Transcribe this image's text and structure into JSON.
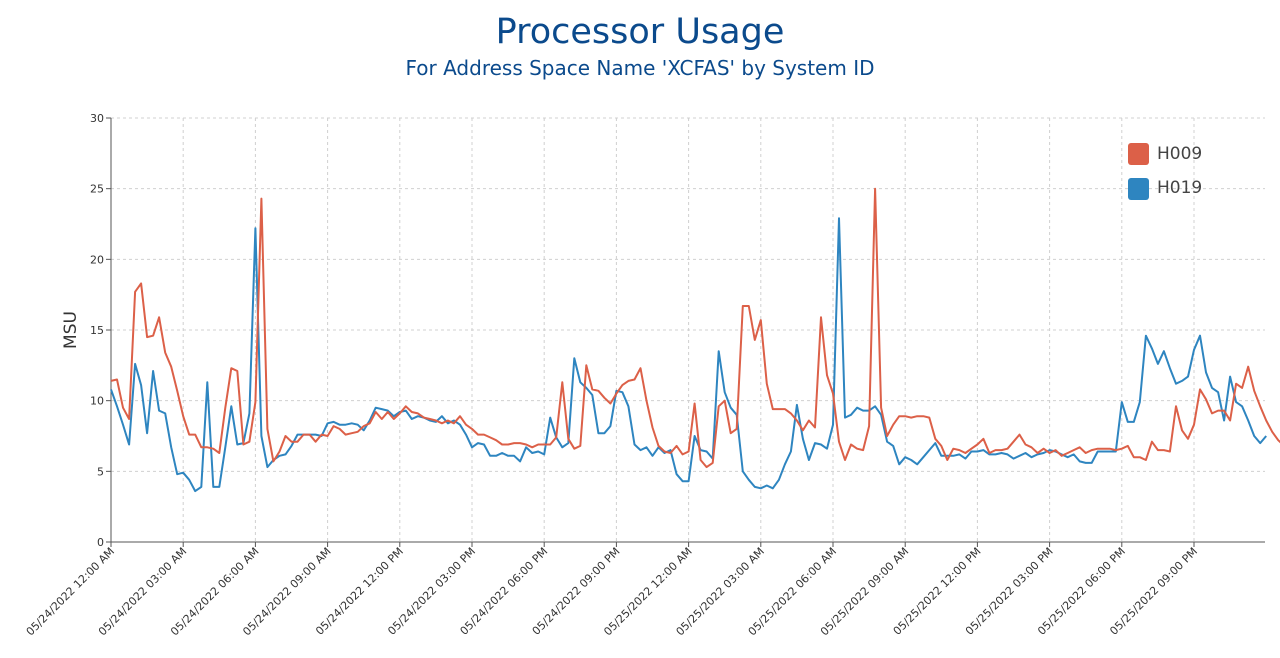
{
  "chart_data": {
    "type": "line",
    "title": "Processor Usage",
    "subtitle": "For Address Space Name 'XCFAS' by System ID",
    "xlabel": "",
    "ylabel": "MSU",
    "ylim": [
      0,
      30
    ],
    "yticks": [
      0,
      5,
      10,
      15,
      20,
      25,
      30
    ],
    "x_tick_labels": [
      "05/24/2022 12:00 AM",
      "05/24/2022 03:00 AM",
      "05/24/2022 06:00 AM",
      "05/24/2022 09:00 AM",
      "05/24/2022 12:00 PM",
      "05/24/2022 03:00 PM",
      "05/24/2022 06:00 PM",
      "05/24/2022 09:00 PM",
      "05/25/2022 12:00 AM",
      "05/25/2022 03:00 AM",
      "05/25/2022 06:00 AM",
      "05/25/2022 09:00 AM",
      "05/25/2022 12:00 PM",
      "05/25/2022 03:00 PM",
      "05/25/2022 06:00 PM",
      "05/25/2022 09:00 PM"
    ],
    "x_interval_minutes": 15,
    "x_end": "05/25/2022 11:45 PM",
    "grid": true,
    "legend_position": "top-right",
    "series": [
      {
        "name": "H009",
        "color": "#dc6048",
        "values": [
          11.4,
          11.5,
          9.5,
          8.7,
          17.7,
          18.3,
          14.5,
          14.6,
          15.9,
          13.4,
          12.4,
          10.7,
          8.9,
          7.6,
          7.6,
          6.7,
          6.7,
          6.6,
          6.3,
          9.5,
          12.3,
          12.1,
          6.9,
          7.1,
          9.9,
          24.3,
          8.0,
          5.7,
          6.4,
          7.5,
          7.1,
          7.1,
          7.6,
          7.6,
          7.1,
          7.6,
          7.5,
          8.2,
          8.0,
          7.6,
          7.7,
          7.8,
          8.2,
          8.4,
          9.2,
          8.7,
          9.2,
          8.7,
          9.1,
          9.6,
          9.2,
          9.1,
          8.8,
          8.7,
          8.6,
          8.4,
          8.6,
          8.4,
          8.9,
          8.3,
          8.0,
          7.6,
          7.6,
          7.4,
          7.2,
          6.9,
          6.9,
          7.0,
          7.0,
          6.9,
          6.7,
          6.9,
          6.9,
          6.9,
          7.4,
          11.3,
          7.3,
          6.6,
          6.8,
          12.5,
          10.8,
          10.7,
          10.2,
          9.8,
          10.5,
          11.1,
          11.4,
          11.5,
          12.3,
          10.0,
          8.1,
          6.8,
          6.4,
          6.3,
          6.8,
          6.2,
          6.4,
          9.8,
          5.8,
          5.3,
          5.6,
          9.6,
          10.0,
          7.7,
          8.0,
          16.7,
          16.7,
          14.3,
          15.7,
          11.2,
          9.4,
          9.4,
          9.4,
          9.1,
          8.6,
          7.9,
          8.6,
          8.1,
          15.9,
          11.8,
          10.5,
          7.1,
          5.8,
          6.9,
          6.6,
          6.5,
          8.2,
          25.0,
          9.5,
          7.5,
          8.3,
          8.9,
          8.9,
          8.8,
          8.9,
          8.9,
          8.8,
          7.3,
          6.8,
          5.8,
          6.6,
          6.5,
          6.3,
          6.6,
          6.9,
          7.3,
          6.3,
          6.5,
          6.5,
          6.6,
          7.1,
          7.6,
          6.9,
          6.7,
          6.3,
          6.6,
          6.3,
          6.5,
          6.1,
          6.3,
          6.5,
          6.7,
          6.3,
          6.5,
          6.6,
          6.6,
          6.6,
          6.5,
          6.6,
          6.8,
          6.0,
          6.0,
          5.8,
          7.1,
          6.5,
          6.5,
          6.4,
          9.6,
          7.9,
          7.3,
          8.3,
          10.8,
          10.1,
          9.1,
          9.3,
          9.3,
          8.6,
          11.2,
          10.9,
          12.4,
          10.7,
          9.6,
          8.6,
          7.8,
          7.2,
          6.8,
          10.1,
          6.3,
          11.4,
          8.7,
          7.1,
          7.6
        ]
      },
      {
        "name": "H019",
        "color": "#2e85c0",
        "values": [
          10.8,
          9.6,
          8.3,
          6.9,
          12.6,
          11.1,
          7.7,
          12.1,
          9.3,
          9.1,
          6.7,
          4.8,
          4.9,
          4.4,
          3.6,
          3.9,
          11.3,
          3.9,
          3.9,
          6.7,
          9.6,
          6.9,
          7.0,
          9.1,
          22.2,
          7.5,
          5.3,
          5.8,
          6.1,
          6.2,
          6.8,
          7.6,
          7.6,
          7.6,
          7.6,
          7.5,
          8.4,
          8.5,
          8.3,
          8.3,
          8.4,
          8.3,
          7.9,
          8.6,
          9.5,
          9.4,
          9.3,
          8.9,
          9.2,
          9.3,
          8.7,
          8.9,
          8.8,
          8.6,
          8.5,
          8.9,
          8.4,
          8.6,
          8.3,
          7.6,
          6.7,
          7.0,
          6.9,
          6.1,
          6.1,
          6.3,
          6.1,
          6.1,
          5.7,
          6.7,
          6.3,
          6.4,
          6.2,
          8.8,
          7.4,
          6.7,
          7.0,
          13.0,
          11.3,
          10.9,
          10.4,
          7.7,
          7.7,
          8.2,
          10.7,
          10.6,
          9.6,
          6.9,
          6.5,
          6.7,
          6.1,
          6.7,
          6.3,
          6.5,
          4.8,
          4.3,
          4.3,
          7.5,
          6.5,
          6.4,
          5.9,
          13.5,
          10.6,
          9.5,
          9.0,
          5.0,
          4.4,
          3.9,
          3.8,
          4.0,
          3.8,
          4.4,
          5.5,
          6.4,
          9.7,
          7.3,
          5.8,
          7.0,
          6.9,
          6.6,
          8.3,
          22.9,
          8.8,
          9.0,
          9.5,
          9.3,
          9.3,
          9.6,
          9.0,
          7.1,
          6.8,
          5.5,
          6.0,
          5.8,
          5.5,
          6.0,
          6.5,
          7.0,
          6.1,
          6.1,
          6.1,
          6.2,
          5.9,
          6.4,
          6.4,
          6.5,
          6.2,
          6.2,
          6.3,
          6.2,
          5.9,
          6.1,
          6.3,
          6.0,
          6.2,
          6.3,
          6.5,
          6.4,
          6.2,
          6.0,
          6.2,
          5.7,
          5.6,
          5.6,
          6.4,
          6.4,
          6.4,
          6.4,
          9.9,
          8.5,
          8.5,
          9.9,
          14.6,
          13.7,
          12.6,
          13.5,
          12.3,
          11.2,
          11.4,
          11.7,
          13.6,
          14.6,
          12.0,
          10.9,
          10.6,
          8.6,
          11.7,
          9.9,
          9.6,
          8.6,
          7.5,
          7.0,
          7.5
        ]
      }
    ]
  }
}
